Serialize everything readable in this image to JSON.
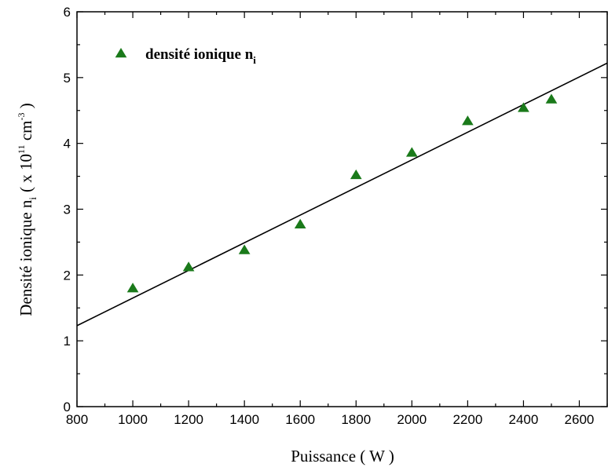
{
  "chart_data": {
    "type": "scatter",
    "title": "",
    "xlabel": "Puissance ( W )",
    "ylabel": {
      "main": "Densité ionique n",
      "sub": "i",
      "unit_prefix": "( x 10",
      "unit_exp": "11",
      "unit_cm": " cm",
      "unit_cm_exp": "-3",
      "unit_suffix": " )"
    },
    "xlim": [
      800,
      2700
    ],
    "ylim": [
      0,
      6
    ],
    "xticks": [
      800,
      1000,
      1200,
      1400,
      1600,
      1800,
      2000,
      2200,
      2400,
      2600
    ],
    "yticks": [
      0,
      1,
      2,
      3,
      4,
      5,
      6
    ],
    "grid": false,
    "legend_position": "top-left",
    "series": [
      {
        "name": "densité ionique n",
        "name_sub": "i",
        "marker": "triangle",
        "color": "#1a7a1a",
        "x": [
          1000,
          1200,
          1400,
          1600,
          1800,
          2000,
          2200,
          2400,
          2500
        ],
        "y": [
          1.8,
          2.12,
          2.38,
          2.77,
          3.52,
          3.86,
          4.34,
          4.54,
          4.67
        ]
      }
    ],
    "fit_line": {
      "color": "#000000",
      "x": [
        800,
        2700
      ],
      "y": [
        1.23,
        5.22
      ]
    }
  }
}
